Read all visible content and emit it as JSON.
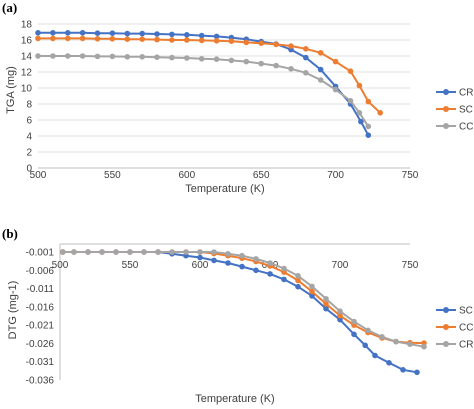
{
  "chart_data": [
    {
      "panel_label": "(a)",
      "type": "line",
      "title": "",
      "xlabel": "Temperature (K)",
      "ylabel": "TGA (mg)",
      "xlim": [
        500,
        750
      ],
      "ylim": [
        0,
        18
      ],
      "xticks": [
        "500",
        "550",
        "600",
        "650",
        "700",
        "750"
      ],
      "yticks": [
        "0",
        "2",
        "4",
        "6",
        "8",
        "10",
        "12",
        "14",
        "16",
        "18"
      ],
      "grid": "horizontal",
      "legend": "right",
      "series": [
        {
          "name": "CR",
          "color": "#4472c4",
          "x": [
            500,
            510,
            520,
            530,
            540,
            550,
            560,
            570,
            580,
            590,
            600,
            610,
            620,
            630,
            640,
            650,
            660,
            670,
            680,
            690,
            700,
            710,
            717,
            722
          ],
          "y": [
            16.9,
            16.9,
            16.9,
            16.9,
            16.85,
            16.85,
            16.8,
            16.8,
            16.75,
            16.7,
            16.65,
            16.55,
            16.45,
            16.3,
            16.1,
            15.8,
            15.5,
            14.8,
            13.8,
            12.3,
            10.2,
            8.0,
            5.8,
            4.1
          ]
        },
        {
          "name": "SC",
          "color": "#ed7d31",
          "x": [
            500,
            510,
            520,
            530,
            540,
            550,
            560,
            570,
            580,
            590,
            600,
            610,
            620,
            630,
            640,
            650,
            660,
            670,
            680,
            690,
            700,
            710,
            716,
            722,
            730
          ],
          "y": [
            16.2,
            16.2,
            16.2,
            16.2,
            16.15,
            16.15,
            16.1,
            16.1,
            16.05,
            16.0,
            16.0,
            15.95,
            15.9,
            15.85,
            15.7,
            15.6,
            15.45,
            15.25,
            14.9,
            14.4,
            13.3,
            12.1,
            10.3,
            8.3,
            6.9
          ]
        },
        {
          "name": "CC",
          "color": "#a5a5a5",
          "x": [
            500,
            510,
            520,
            530,
            540,
            550,
            560,
            570,
            580,
            590,
            600,
            610,
            620,
            630,
            640,
            650,
            660,
            670,
            680,
            690,
            700,
            710,
            716,
            722
          ],
          "y": [
            14.0,
            14.0,
            14.0,
            14.0,
            13.95,
            13.95,
            13.9,
            13.9,
            13.85,
            13.8,
            13.75,
            13.65,
            13.6,
            13.45,
            13.3,
            13.05,
            12.8,
            12.4,
            11.9,
            11.0,
            9.8,
            8.4,
            6.9,
            5.2
          ]
        }
      ]
    },
    {
      "panel_label": "(b)",
      "type": "line",
      "title": "",
      "xlabel": "Temperature (K)",
      "ylabel": "DTG (mg-1)",
      "xlim": [
        500,
        750
      ],
      "ylim": [
        -0.036,
        -0.001
      ],
      "xticks": [
        "500",
        "550",
        "600",
        "650",
        "700",
        "750"
      ],
      "yticks": [
        "-0.001",
        "-0.006",
        "-0.011",
        "-0.016",
        "-0.021",
        "-0.026",
        "-0.031",
        "-0.036"
      ],
      "grid": "horizontal",
      "legend": "right",
      "series": [
        {
          "name": "SC",
          "color": "#4472c4",
          "x": [
            502,
            510,
            520,
            530,
            540,
            550,
            560,
            570,
            580,
            590,
            600,
            610,
            620,
            630,
            640,
            650,
            660,
            670,
            680,
            690,
            700,
            710,
            718,
            725,
            735,
            745,
            755
          ],
          "y": [
            -0.0003,
            -0.0004,
            -0.0005,
            -0.0006,
            -0.0006,
            -0.0007,
            -0.0008,
            -0.001,
            -0.0015,
            -0.002,
            -0.0025,
            -0.0033,
            -0.004,
            -0.005,
            -0.006,
            -0.007,
            -0.0085,
            -0.0105,
            -0.013,
            -0.0165,
            -0.0195,
            -0.0235,
            -0.0265,
            -0.0293,
            -0.0313,
            -0.0332,
            -0.0339
          ]
        },
        {
          "name": "CC",
          "color": "#ed7d31",
          "x": [
            502,
            510,
            520,
            530,
            540,
            550,
            560,
            570,
            580,
            590,
            600,
            610,
            620,
            630,
            640,
            650,
            660,
            670,
            680,
            690,
            700,
            710,
            720,
            730,
            740,
            750,
            760
          ],
          "y": [
            0.0,
            0.0,
            0.0,
            -0.0001,
            -0.0001,
            -0.0002,
            -0.0002,
            -0.0003,
            -0.0005,
            -0.0007,
            -0.001,
            -0.0014,
            -0.002,
            -0.0027,
            -0.0036,
            -0.0048,
            -0.0065,
            -0.0088,
            -0.0118,
            -0.0152,
            -0.0184,
            -0.021,
            -0.023,
            -0.0245,
            -0.0255,
            -0.0258,
            -0.0259
          ]
        },
        {
          "name": "CR",
          "color": "#a5a5a5",
          "x": [
            502,
            510,
            520,
            530,
            540,
            550,
            560,
            570,
            580,
            590,
            600,
            610,
            620,
            630,
            640,
            650,
            660,
            670,
            680,
            690,
            700,
            710,
            720,
            730,
            740,
            750,
            760
          ],
          "y": [
            0.0,
            0.0,
            0.0,
            0.0,
            0.0,
            -0.0001,
            -0.0001,
            -0.0002,
            -0.0003,
            -0.0005,
            -0.0007,
            -0.001,
            -0.0015,
            -0.002,
            -0.0029,
            -0.004,
            -0.0055,
            -0.0075,
            -0.0104,
            -0.0138,
            -0.0172,
            -0.02,
            -0.0224,
            -0.0242,
            -0.0255,
            -0.0262,
            -0.0269
          ]
        }
      ]
    }
  ]
}
